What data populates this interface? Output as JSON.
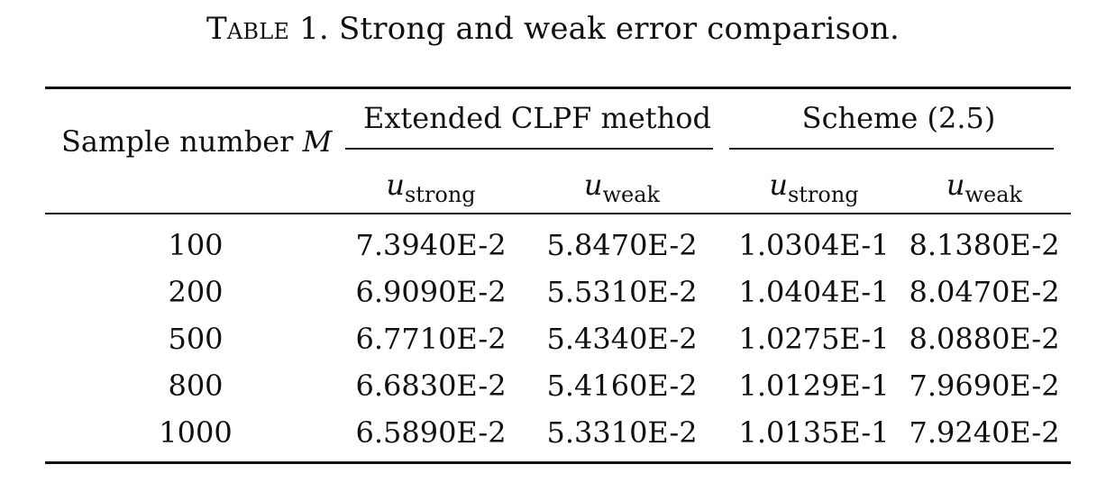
{
  "caption": {
    "label": "Table 1.",
    "text": "Strong and weak error comparison."
  },
  "header": {
    "row_label": "Sample number",
    "row_label_var": "M",
    "group1": "Extended CLPF method",
    "group2": "Scheme (2.5)",
    "sub_var": "u",
    "sub_strong": "strong",
    "sub_weak": "weak"
  },
  "rows": [
    {
      "m": "100",
      "clpf_strong": "7.3940E-2",
      "clpf_weak": "5.8470E-2",
      "scheme_strong": "1.0304E-1",
      "scheme_weak": "8.1380E-2"
    },
    {
      "m": "200",
      "clpf_strong": "6.9090E-2",
      "clpf_weak": "5.5310E-2",
      "scheme_strong": "1.0404E-1",
      "scheme_weak": "8.0470E-2"
    },
    {
      "m": "500",
      "clpf_strong": "6.7710E-2",
      "clpf_weak": "5.4340E-2",
      "scheme_strong": "1.0275E-1",
      "scheme_weak": "8.0880E-2"
    },
    {
      "m": "800",
      "clpf_strong": "6.6830E-2",
      "clpf_weak": "5.4160E-2",
      "scheme_strong": "1.0129E-1",
      "scheme_weak": "7.9690E-2"
    },
    {
      "m": "1000",
      "clpf_strong": "6.5890E-2",
      "clpf_weak": "5.3310E-2",
      "scheme_strong": "1.0135E-1",
      "scheme_weak": "7.9240E-2"
    }
  ]
}
